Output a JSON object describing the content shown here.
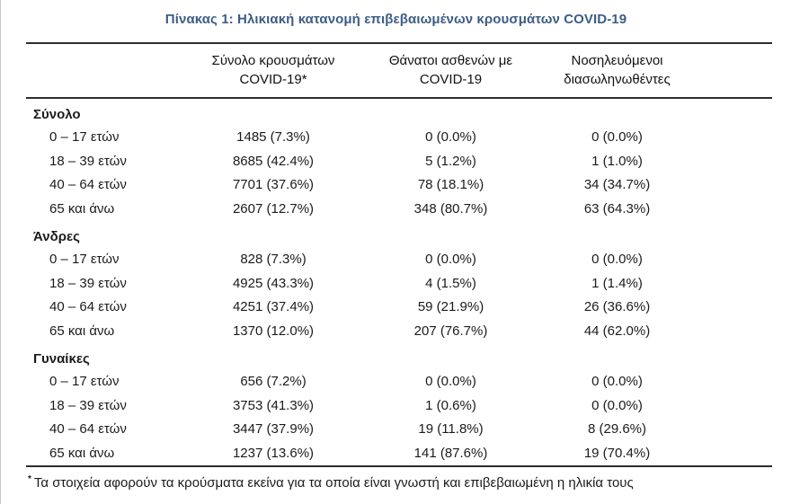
{
  "title": "Πίνακας 1: Ηλικιακή κατανομή επιβεβαιωμένων κρουσμάτων COVID-19",
  "table": {
    "col_headers": [
      {
        "line1": "Σύνολο κρουσμάτων",
        "line2": "COVID-19*"
      },
      {
        "line1": "Θάνατοι ασθενών με",
        "line2": "COVID-19"
      },
      {
        "line1": "Νοσηλευόμενοι",
        "line2": "διασωληνωθέντες"
      }
    ],
    "sections": [
      {
        "label": "Σύνολο",
        "rows": [
          {
            "age": "0 – 17 ετών",
            "cases": "1485 (7.3%)",
            "deaths": "0 (0.0%)",
            "intubated": "0 (0.0%)"
          },
          {
            "age": "18 – 39 ετών",
            "cases": "8685 (42.4%)",
            "deaths": "5 (1.2%)",
            "intubated": "1 (1.0%)"
          },
          {
            "age": "40 – 64 ετών",
            "cases": "7701 (37.6%)",
            "deaths": "78 (18.1%)",
            "intubated": "34 (34.7%)"
          },
          {
            "age": "65 και άνω",
            "cases": "2607 (12.7%)",
            "deaths": "348 (80.7%)",
            "intubated": "63 (64.3%)"
          }
        ]
      },
      {
        "label": "Άνδρες",
        "rows": [
          {
            "age": "0 – 17 ετών",
            "cases": "828 (7.3%)",
            "deaths": "0 (0.0%)",
            "intubated": "0 (0.0%)"
          },
          {
            "age": "18 – 39 ετών",
            "cases": "4925 (43.3%)",
            "deaths": "4 (1.5%)",
            "intubated": "1 (1.4%)"
          },
          {
            "age": "40 – 64 ετών",
            "cases": "4251 (37.4%)",
            "deaths": "59 (21.9%)",
            "intubated": "26 (36.6%)"
          },
          {
            "age": "65 και άνω",
            "cases": "1370 (12.0%)",
            "deaths": "207 (76.7%)",
            "intubated": "44 (62.0%)"
          }
        ]
      },
      {
        "label": "Γυναίκες",
        "rows": [
          {
            "age": "0 – 17 ετών",
            "cases": "656 (7.2%)",
            "deaths": "0 (0.0%)",
            "intubated": "0 (0.0%)"
          },
          {
            "age": "18 – 39 ετών",
            "cases": "3753 (41.3%)",
            "deaths": "1 (0.6%)",
            "intubated": "0 (0.0%)"
          },
          {
            "age": "40 – 64 ετών",
            "cases": "3447 (37.9%)",
            "deaths": "19 (11.8%)",
            "intubated": "8 (29.6%)"
          },
          {
            "age": "65 και άνω",
            "cases": "1237 (13.6%)",
            "deaths": "141 (87.6%)",
            "intubated": "19 (70.4%)"
          }
        ]
      }
    ]
  },
  "footnote": {
    "marker": "*",
    "text": "Τα στοιχεία αφορούν τα κρούσματα εκείνα για τα οποία είναι γνωστή και επιβεβαιωμένη η ηλικία τους"
  },
  "colors": {
    "title": "#3d5d85",
    "text": "#1b1b1b",
    "rule": "#2e2e2e"
  }
}
